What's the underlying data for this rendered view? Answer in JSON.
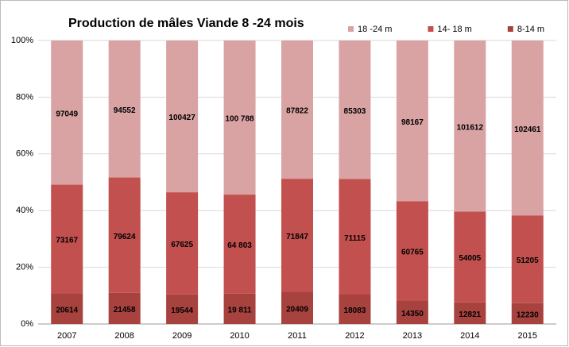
{
  "chart_data": {
    "type": "bar",
    "stacking": "percent",
    "title": "Production de mâles Viande 8 -24 mois",
    "categories": [
      "2007",
      "2008",
      "2009",
      "2010",
      "2011",
      "2012",
      "2013",
      "2014",
      "2015"
    ],
    "series": [
      {
        "name": "18 -24 m",
        "color": "#d9a3a4",
        "values": [
          97049,
          94552,
          100427,
          100788,
          87822,
          85303,
          98167,
          101612,
          102461
        ],
        "value_labels": [
          "97049",
          "94552",
          "100427",
          "100 788",
          "87822",
          "85303",
          "98167",
          "101612",
          "102461"
        ]
      },
      {
        "name": "14- 18 m",
        "color": "#c2504e",
        "values": [
          73167,
          79624,
          67625,
          64803,
          71847,
          71115,
          60765,
          54005,
          51205
        ],
        "value_labels": [
          "73167",
          "79624",
          "67625",
          "64 803",
          "71847",
          "71115",
          "60765",
          "54005",
          "51205"
        ]
      },
      {
        "name": "8-14 m",
        "color": "#a8423f",
        "values": [
          20614,
          21458,
          19544,
          19811,
          20409,
          18083,
          14350,
          12821,
          12230
        ],
        "value_labels": [
          "20614",
          "21458",
          "19544",
          "19 811",
          "20409",
          "18083",
          "14350",
          "12821",
          "12230"
        ]
      }
    ],
    "ylim": [
      0,
      100
    ],
    "yticks": [
      {
        "value": 0,
        "label": "0%"
      },
      {
        "value": 20,
        "label": "20%"
      },
      {
        "value": 40,
        "label": "40%"
      },
      {
        "value": 60,
        "label": "60%"
      },
      {
        "value": 80,
        "label": "80%"
      },
      {
        "value": 100,
        "label": "100%"
      }
    ],
    "grid": true,
    "legend": "top-right"
  }
}
